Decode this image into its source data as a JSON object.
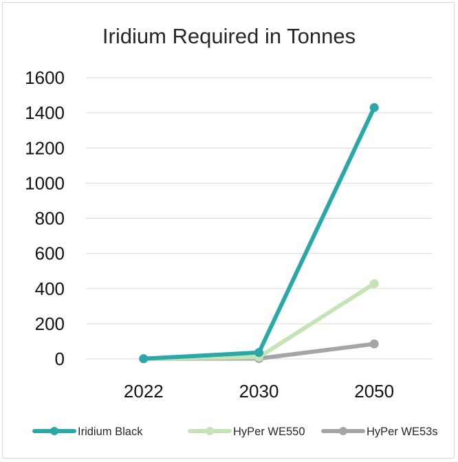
{
  "chart_data": {
    "type": "line",
    "title": "Iridium Required in Tonnes",
    "categories": [
      "2022",
      "2030",
      "2050"
    ],
    "ylim": [
      0,
      1600
    ],
    "yticks": [
      0,
      200,
      400,
      600,
      800,
      1000,
      1200,
      1400,
      1600
    ],
    "grid": true,
    "legend": "bottom",
    "series": [
      {
        "name": "Iridium Black",
        "values": [
          1,
          36,
          1430
        ],
        "color": "#2aa7a7"
      },
      {
        "name": "HyPer WE550",
        "values": [
          1,
          10,
          428
        ],
        "color": "#c6e3b5"
      },
      {
        "name": "HyPer WE53s",
        "values": [
          1,
          2,
          85
        ],
        "color": "#a5a5a5"
      }
    ]
  }
}
